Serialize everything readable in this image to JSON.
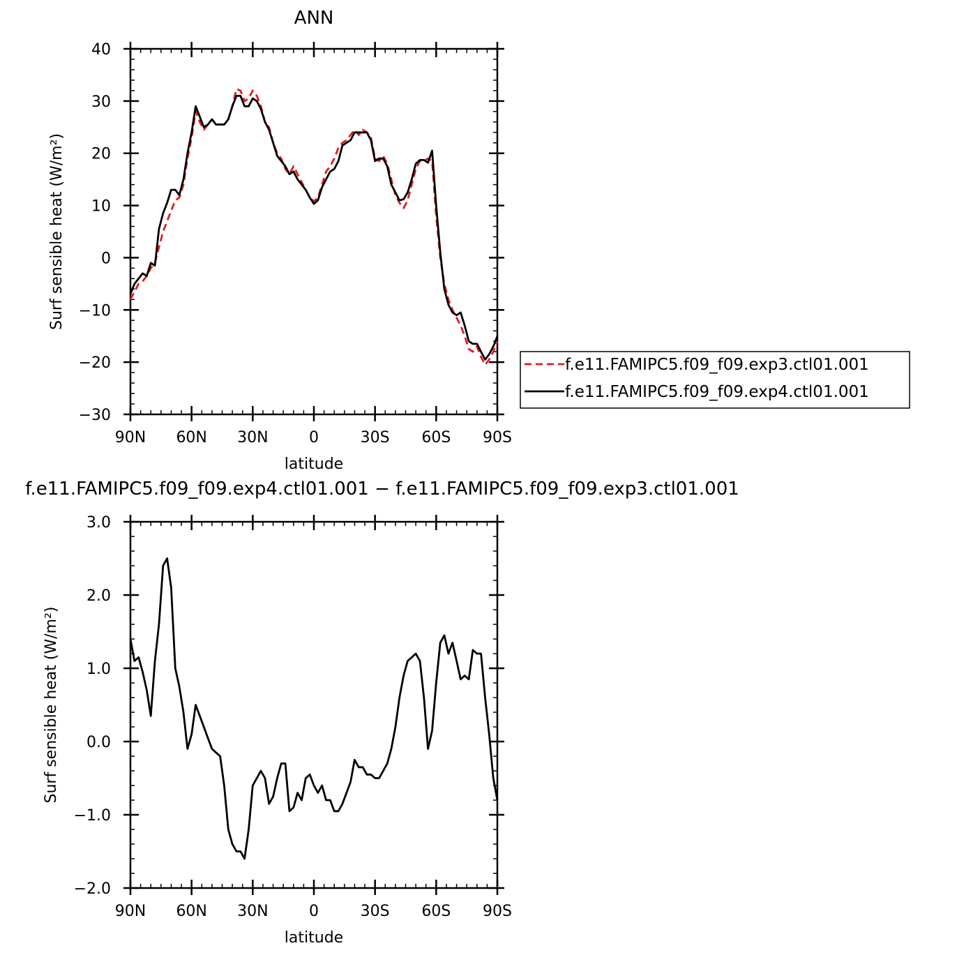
{
  "chart_data": [
    {
      "type": "line",
      "title": "ANN",
      "xlabel": "latitude",
      "ylabel": "Surf  sensible  heat  (W/m²)",
      "xlim": [
        90,
        -90
      ],
      "ylim": [
        -30,
        40
      ],
      "x_ticks": [
        {
          "value": 90,
          "label": "90N"
        },
        {
          "value": 60,
          "label": "60N"
        },
        {
          "value": 30,
          "label": "30N"
        },
        {
          "value": 0,
          "label": "0"
        },
        {
          "value": -30,
          "label": "30S"
        },
        {
          "value": -60,
          "label": "60S"
        },
        {
          "value": -90,
          "label": "90S"
        }
      ],
      "y_ticks": [
        {
          "value": 40,
          "label": "40"
        },
        {
          "value": 30,
          "label": "30"
        },
        {
          "value": 20,
          "label": "20"
        },
        {
          "value": 10,
          "label": "10"
        },
        {
          "value": 0,
          "label": "0"
        },
        {
          "value": -10,
          "label": "−10"
        },
        {
          "value": -20,
          "label": "−20"
        },
        {
          "value": -30,
          "label": "−30"
        }
      ],
      "legend_position": "right",
      "series": [
        {
          "name": "f.e11.FAMIPC5.f09_f09.exp3.ctl01.001",
          "color": "#e31a1c",
          "dash": "dashed",
          "x": [
            90,
            88,
            86,
            84,
            82,
            80,
            78,
            76,
            74,
            72,
            70,
            68,
            66,
            64,
            62,
            60,
            58,
            56,
            54,
            52,
            50,
            48,
            46,
            44,
            42,
            40,
            38,
            36,
            34,
            32,
            30,
            28,
            26,
            24,
            22,
            20,
            18,
            16,
            14,
            12,
            10,
            8,
            6,
            4,
            2,
            0,
            -2,
            -4,
            -6,
            -8,
            -10,
            -12,
            -14,
            -16,
            -18,
            -20,
            -22,
            -24,
            -26,
            -28,
            -30,
            -32,
            -34,
            -36,
            -38,
            -40,
            -42,
            -44,
            -46,
            -48,
            -50,
            -52,
            -54,
            -56,
            -58,
            -60,
            -62,
            -64,
            -66,
            -68,
            -70,
            -72,
            -74,
            -76,
            -78,
            -80,
            -82,
            -84,
            -86,
            -88,
            -90
          ],
          "y": [
            -8,
            -6.5,
            -5,
            -4.5,
            -3.5,
            -2,
            -1,
            2,
            5,
            7,
            9,
            11,
            11.5,
            14,
            19,
            23,
            28,
            26,
            24.5,
            25.5,
            26.5,
            25.5,
            25.5,
            25.5,
            26.5,
            29,
            32.3,
            32,
            30,
            30.5,
            32,
            31,
            29,
            26,
            25,
            22,
            20,
            19,
            17,
            16,
            17.5,
            16,
            14.5,
            13,
            11.5,
            10.8,
            11.5,
            14,
            16.5,
            17.5,
            19,
            21,
            22,
            22.5,
            23.5,
            24.5,
            23.5,
            24.5,
            24,
            23,
            19,
            18.5,
            19.5,
            18,
            15,
            12,
            10.5,
            9.5,
            11,
            14,
            17,
            18.5,
            18.5,
            19,
            18.5,
            8,
            0,
            -5,
            -8,
            -10,
            -11.5,
            -13,
            -15,
            -17.5,
            -18,
            -17,
            -19,
            -20.5,
            -19.5,
            -18,
            -16
          ]
        },
        {
          "name": "f.e11.FAMIPC5.f09_f09.exp4.ctl01.001",
          "color": "#000000",
          "dash": "solid",
          "x": [
            90,
            88,
            86,
            84,
            82,
            80,
            78,
            76,
            74,
            72,
            70,
            68,
            66,
            64,
            62,
            60,
            58,
            56,
            54,
            52,
            50,
            48,
            46,
            44,
            42,
            40,
            38,
            36,
            34,
            32,
            30,
            28,
            26,
            24,
            22,
            20,
            18,
            16,
            14,
            12,
            10,
            8,
            6,
            4,
            2,
            0,
            -2,
            -4,
            -6,
            -8,
            -10,
            -12,
            -14,
            -16,
            -18,
            -20,
            -22,
            -24,
            -26,
            -28,
            -30,
            -32,
            -34,
            -36,
            -38,
            -40,
            -42,
            -44,
            -46,
            -48,
            -50,
            -52,
            -54,
            -56,
            -58,
            -60,
            -62,
            -64,
            -66,
            -68,
            -70,
            -72,
            -74,
            -76,
            -78,
            -80,
            -82,
            -84,
            -86,
            -88,
            -90
          ],
          "y": [
            -7,
            -5,
            -4,
            -3,
            -3.5,
            -1,
            -1.5,
            5.5,
            8.5,
            10.5,
            13,
            13,
            12,
            15,
            20,
            24,
            29,
            27,
            25,
            25.5,
            26.5,
            25.5,
            25.5,
            25.5,
            26.5,
            29,
            31,
            31,
            29,
            29,
            30.5,
            30,
            28.5,
            26,
            24.5,
            22,
            19.5,
            18.5,
            17.5,
            16,
            16.5,
            15,
            14,
            13,
            11.5,
            10.3,
            11,
            13.5,
            15,
            16.5,
            17,
            18.5,
            21.5,
            22,
            22.5,
            24,
            24,
            24,
            24,
            22.5,
            18.5,
            19,
            19,
            17.5,
            14,
            12.5,
            11,
            11.2,
            12.5,
            15,
            18,
            18.7,
            18.7,
            18.2,
            20.5,
            10,
            1,
            -6,
            -9,
            -10.5,
            -11,
            -10.5,
            -13,
            -16,
            -16.5,
            -16.5,
            -18,
            -19.5,
            -18.5,
            -17,
            -15
          ]
        }
      ]
    },
    {
      "type": "line",
      "title": "f.e11.FAMIPC5.f09_f09.exp4.ctl01.001  −  f.e11.FAMIPC5.f09_f09.exp3.ctl01.001",
      "xlabel": "latitude",
      "ylabel": "Surf  sensible  heat  (W/m²)",
      "xlim": [
        90,
        -90
      ],
      "ylim": [
        -2.0,
        3.0
      ],
      "x_ticks": [
        {
          "value": 90,
          "label": "90N"
        },
        {
          "value": 60,
          "label": "60N"
        },
        {
          "value": 30,
          "label": "30N"
        },
        {
          "value": 0,
          "label": "0"
        },
        {
          "value": -30,
          "label": "30S"
        },
        {
          "value": -60,
          "label": "60S"
        },
        {
          "value": -90,
          "label": "90S"
        }
      ],
      "y_ticks": [
        {
          "value": 3.0,
          "label": "3.0"
        },
        {
          "value": 2.0,
          "label": "2.0"
        },
        {
          "value": 1.0,
          "label": "1.0"
        },
        {
          "value": 0.0,
          "label": "0.0"
        },
        {
          "value": -1.0,
          "label": "−1.0"
        },
        {
          "value": -2.0,
          "label": "−2.0"
        }
      ],
      "series": [
        {
          "color": "#000000",
          "dash": "solid",
          "x": [
            90,
            88,
            86,
            84,
            82,
            80,
            78,
            76,
            74,
            72,
            70,
            68,
            66,
            64,
            62,
            60,
            58,
            56,
            54,
            52,
            50,
            48,
            46,
            44,
            42,
            40,
            38,
            36,
            34,
            32,
            30,
            28,
            26,
            24,
            22,
            20,
            18,
            16,
            14,
            12,
            10,
            8,
            6,
            4,
            2,
            0,
            -2,
            -4,
            -6,
            -8,
            -10,
            -12,
            -14,
            -16,
            -18,
            -20,
            -22,
            -24,
            -26,
            -28,
            -30,
            -32,
            -34,
            -36,
            -38,
            -40,
            -42,
            -44,
            -46,
            -48,
            -50,
            -52,
            -54,
            -56,
            -58,
            -60,
            -62,
            -64,
            -66,
            -68,
            -70,
            -72,
            -74,
            -76,
            -78,
            -80,
            -82,
            -84,
            -86,
            -88,
            -90
          ],
          "y": [
            1.4,
            1.1,
            1.15,
            0.95,
            0.7,
            0.35,
            1.1,
            1.6,
            2.4,
            2.5,
            2.1,
            1.0,
            0.75,
            0.4,
            -0.1,
            0.1,
            0.5,
            0.35,
            0.2,
            0.05,
            -0.1,
            -0.15,
            -0.2,
            -0.6,
            -1.2,
            -1.4,
            -1.5,
            -1.5,
            -1.6,
            -1.2,
            -0.6,
            -0.5,
            -0.4,
            -0.5,
            -0.85,
            -0.75,
            -0.5,
            -0.3,
            -0.3,
            -0.95,
            -0.9,
            -0.7,
            -0.8,
            -0.5,
            -0.45,
            -0.6,
            -0.7,
            -0.6,
            -0.8,
            -0.8,
            -0.95,
            -0.95,
            -0.85,
            -0.7,
            -0.55,
            -0.25,
            -0.35,
            -0.35,
            -0.45,
            -0.45,
            -0.5,
            -0.5,
            -0.4,
            -0.3,
            -0.1,
            0.2,
            0.6,
            0.9,
            1.1,
            1.15,
            1.2,
            1.1,
            0.6,
            -0.1,
            0.15,
            0.8,
            1.35,
            1.45,
            1.2,
            1.35,
            1.1,
            0.85,
            0.9,
            0.85,
            1.25,
            1.2,
            1.2,
            0.6,
            0.1,
            -0.5,
            -0.8
          ]
        }
      ]
    }
  ]
}
